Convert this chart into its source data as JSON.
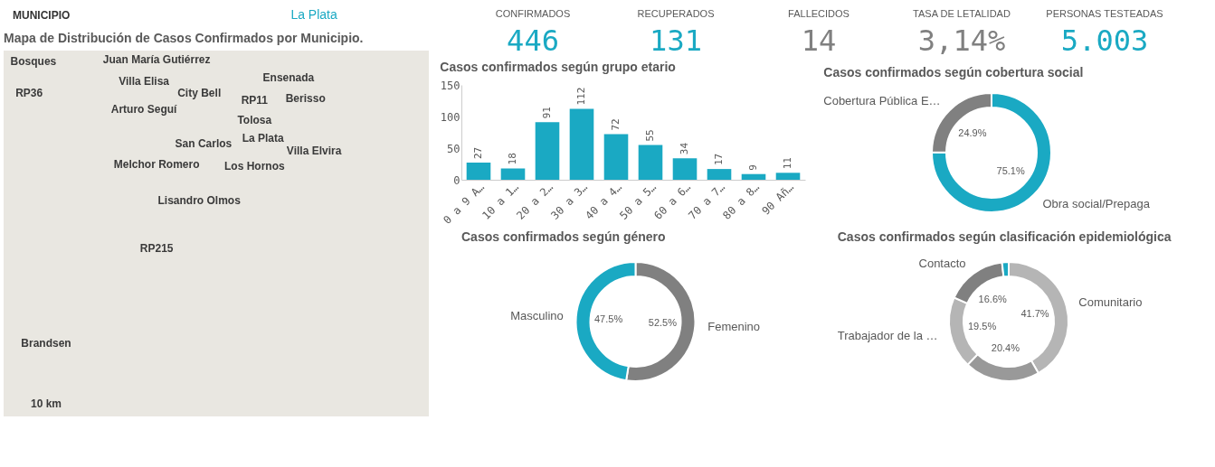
{
  "chart_data": [
    {
      "type": "other",
      "annotations": [
        "MUNICIPIO",
        "La Plata"
      ]
    },
    {
      "type": "other",
      "title": "Mapa de Distribución de Casos Confirmados por Municipio.",
      "annotations": [
        "Bosques",
        "Juan María Gutiérrez",
        "Villa Elisa",
        "City Bell",
        "Ensenada",
        "Berisso",
        "RP36",
        "RP11",
        "Arturo Seguí",
        "Tolosa",
        "La Plata",
        "San Carlos",
        "Villa Elvira",
        "Melchor Romero",
        "Los Hornos",
        "Lisandro Olmos",
        "RP215",
        "Brandsen",
        "10 km"
      ]
    },
    {
      "type": "other",
      "annotations": [
        "CONFIRMADOS",
        "446",
        "RECUPERADOS",
        "131",
        "FALLECIDOS",
        "14",
        "TASA DE LETALIDAD",
        "3,14%",
        "PERSONAS TESTEADAS",
        "5.003"
      ],
      "colors": [
        "#1aa9c3",
        "#1aa9c3",
        "#808080",
        "#808080",
        "#1aa9c3"
      ]
    },
    {
      "type": "bar",
      "title": "Casos confirmados según grupo etario",
      "categories": [
        "0 a 9 A…",
        "10 a 1…",
        "20 a 2…",
        "30 a 3…",
        "40 a 4…",
        "50 a 5…",
        "60 a 6…",
        "70 a 7…",
        "80 a 8…",
        "90 Añ…"
      ],
      "values": [
        27,
        18,
        91,
        112,
        72,
        55,
        34,
        17,
        9,
        11
      ],
      "color": "#1aa9c3",
      "ylim": [
        0,
        150
      ],
      "yticks": [
        0,
        50,
        100,
        150
      ],
      "data_labels": true,
      "grid": false
    },
    {
      "type": "donut",
      "title": "Casos confirmados según cobertura social",
      "categories": [
        "Obra social/Prepaga",
        "Cobertura Pública E…"
      ],
      "values": [
        75.1,
        24.9
      ],
      "colors": [
        "#1aa9c3",
        "#808080"
      ],
      "value_labels": [
        "75.1%",
        "24.9%"
      ]
    },
    {
      "type": "donut",
      "title": "Casos confirmados según género",
      "categories": [
        "Femenino",
        "Masculino"
      ],
      "values": [
        52.5,
        47.5
      ],
      "colors": [
        "#808080",
        "#1aa9c3"
      ],
      "value_labels": [
        "52.5%",
        "47.5%"
      ]
    },
    {
      "type": "donut",
      "title": "Casos confirmados según clasificación epidemiológica",
      "categories": [
        "Comunitario",
        null,
        "Trabajador de la …",
        "Contacto",
        null
      ],
      "values": [
        41.7,
        20.4,
        19.5,
        16.6,
        1.8
      ],
      "colors": [
        "#b5b5b5",
        "#999999",
        "#b5b5b5",
        "#808080",
        "#1aa9c3"
      ],
      "value_labels": [
        "41.7%",
        "20.4%",
        "19.5%",
        "16.6%",
        null
      ]
    }
  ]
}
